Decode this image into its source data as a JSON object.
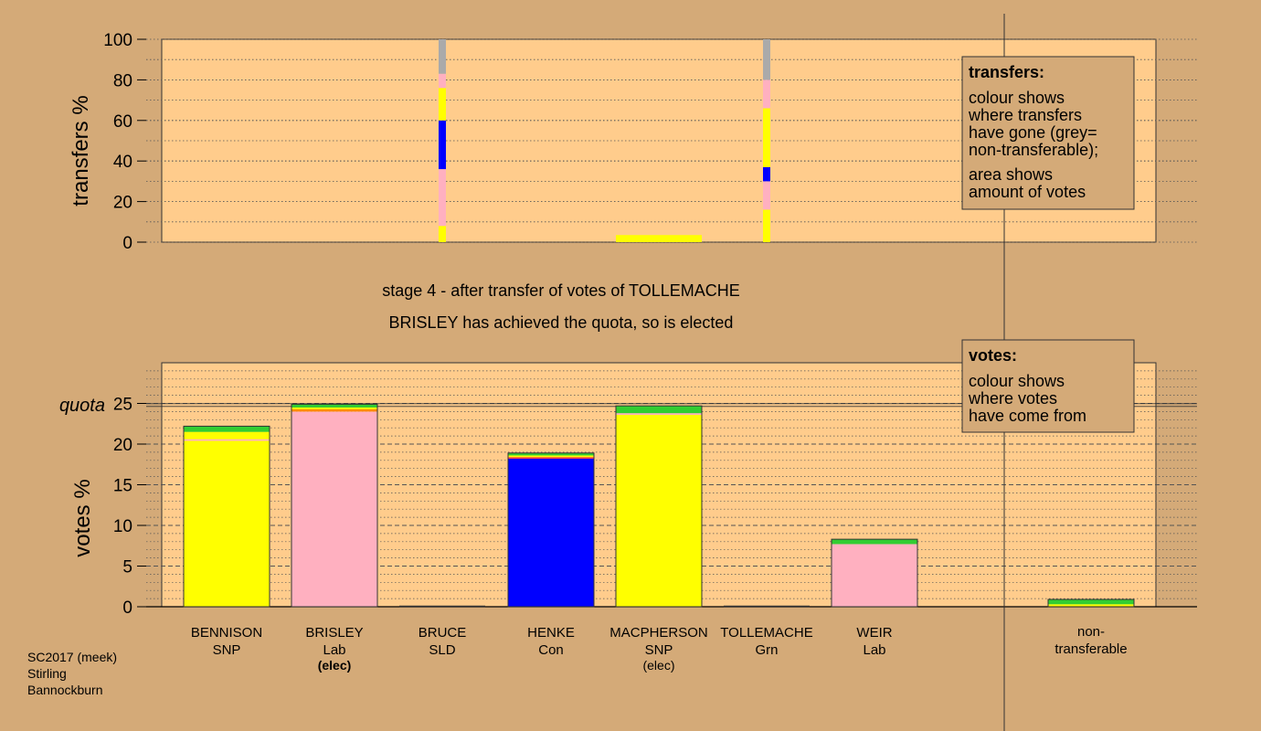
{
  "chart_data": [
    {
      "type": "bar",
      "ylabel": "transfers %",
      "ylim": [
        0,
        100
      ],
      "yticks": [
        0,
        20,
        40,
        60,
        80,
        100
      ],
      "stripes": [
        {
          "candidate": "BRUCE",
          "segments": [
            {
              "colour": "#ffff00",
              "value": 8
            },
            {
              "colour": "#ffb0c0",
              "value": 28
            },
            {
              "colour": "#0000ff",
              "value": 24
            },
            {
              "colour": "#ffff00",
              "value": 16
            },
            {
              "colour": "#ffb0c0",
              "value": 7
            },
            {
              "colour": "#aaaaaa",
              "value": 17
            }
          ]
        },
        {
          "candidate": "TOLLEMACHE",
          "segments": [
            {
              "colour": "#ffff00",
              "value": 16
            },
            {
              "colour": "#ffb0c0",
              "value": 14
            },
            {
              "colour": "#0000ff",
              "value": 7
            },
            {
              "colour": "#ffff00",
              "value": 29
            },
            {
              "colour": "#ffb0c0",
              "value": 14
            },
            {
              "colour": "#aaaaaa",
              "value": 20
            }
          ]
        }
      ],
      "transfer_bar": {
        "candidate": "MACPHERSON",
        "colour": "#ffff00",
        "value": 3.5
      },
      "legend": {
        "title": "transfers:",
        "lines1": [
          "colour shows",
          "where transfers",
          "have gone (grey=",
          "non-transferable);"
        ],
        "lines2": [
          "area shows",
          "amount of votes"
        ]
      }
    },
    {
      "type": "bar",
      "ylabel": "votes %",
      "ylim": [
        0,
        30
      ],
      "yticks": [
        0,
        5,
        10,
        15,
        20,
        25
      ],
      "quota": 24.8,
      "quota_label": "quota",
      "categories": [
        "BENNISON",
        "BRISLEY",
        "BRUCE",
        "HENKE",
        "MACPHERSON",
        "TOLLEMACHE",
        "WEIR",
        "non-transferable"
      ],
      "parties": [
        "SNP",
        "Lab",
        "SLD",
        "Con",
        "SNP",
        "Grn",
        "Lab",
        ""
      ],
      "status": [
        "",
        "(elec)",
        "",
        "",
        "(elec)",
        "",
        "",
        ""
      ],
      "status_bold": [
        false,
        true,
        false,
        false,
        false,
        false,
        false,
        false
      ],
      "nontransferable_label": [
        "non-",
        "transferable"
      ],
      "stacks": [
        [
          {
            "colour": "#ffff00",
            "value": 20.4
          },
          {
            "colour": "#ffb0c0",
            "value": 0.2
          },
          {
            "colour": "#ffff00",
            "value": 0.9
          },
          {
            "colour": "#32cd32",
            "value": 0.7
          }
        ],
        [
          {
            "colour": "#ffb0c0",
            "value": 24.0
          },
          {
            "colour": "#ff8c00",
            "value": 0.3
          },
          {
            "colour": "#ffff00",
            "value": 0.2
          },
          {
            "colour": "#32cd32",
            "value": 0.4
          }
        ],
        [],
        [
          {
            "colour": "#0000ff",
            "value": 18.2
          },
          {
            "colour": "#ff4040",
            "value": 0.2
          },
          {
            "colour": "#ffff00",
            "value": 0.2
          },
          {
            "colour": "#32cd32",
            "value": 0.3
          }
        ],
        [
          {
            "colour": "#ffff00",
            "value": 23.6
          },
          {
            "colour": "#ffb0c0",
            "value": 0.2
          },
          {
            "colour": "#32cd32",
            "value": 0.9
          }
        ],
        [],
        [
          {
            "colour": "#ffb0c0",
            "value": 7.7
          },
          {
            "colour": "#32cd32",
            "value": 0.6
          }
        ],
        [
          {
            "colour": "#ffff00",
            "value": 0.3
          },
          {
            "colour": "#32cd32",
            "value": 0.6
          }
        ]
      ],
      "legend": {
        "title": "votes:",
        "lines": [
          "colour shows",
          "where votes",
          "have come from"
        ]
      }
    }
  ],
  "stage_title": "stage 4 - after transfer of votes of TOLLEMACHE",
  "stage_subtitle": "BRISLEY has achieved the quota, so is elected",
  "footer": [
    "SC2017 (meek)",
    "Stirling",
    "Bannockburn"
  ]
}
